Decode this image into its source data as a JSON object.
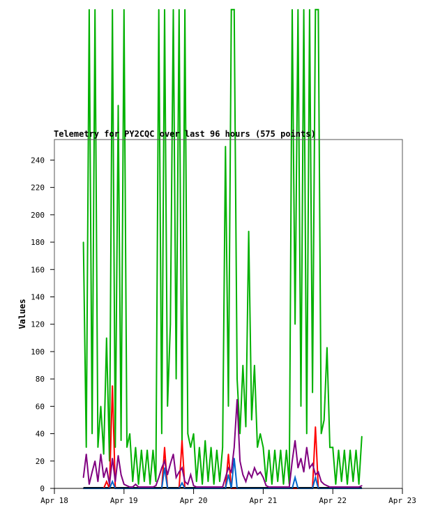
{
  "chart_data": {
    "type": "line",
    "title": "Telemetry for PY2CQC over last 96 hours (575 points)",
    "xlabel": "",
    "ylabel": "Values",
    "ylim": [
      0,
      255
    ],
    "xlim": [
      "Apr 18 00:00",
      "Apr 23 00:00"
    ],
    "yticks": [
      0,
      20,
      40,
      60,
      80,
      100,
      120,
      140,
      160,
      180,
      200,
      220,
      240
    ],
    "xticks": [
      "Apr 18",
      "Apr 19",
      "Apr 20",
      "Apr 21",
      "Apr 22",
      "Apr 23"
    ],
    "grid": false,
    "x": [
      "Apr 18 10:00",
      "Apr 18 11:00",
      "Apr 18 12:00",
      "Apr 18 13:00",
      "Apr 18 14:00",
      "Apr 18 15:00",
      "Apr 18 16:00",
      "Apr 18 17:00",
      "Apr 18 18:00",
      "Apr 18 19:00",
      "Apr 18 20:00",
      "Apr 18 21:00",
      "Apr 18 22:00",
      "Apr 18 23:00",
      "Apr 19 00:00",
      "Apr 19 01:00",
      "Apr 19 02:00",
      "Apr 19 03:00",
      "Apr 19 04:00",
      "Apr 19 05:00",
      "Apr 19 06:00",
      "Apr 19 07:00",
      "Apr 19 08:00",
      "Apr 19 09:00",
      "Apr 19 10:00",
      "Apr 19 11:00",
      "Apr 19 12:00",
      "Apr 19 13:00",
      "Apr 19 14:00",
      "Apr 19 15:00",
      "Apr 19 16:00",
      "Apr 19 17:00",
      "Apr 19 18:00",
      "Apr 19 19:00",
      "Apr 19 20:00",
      "Apr 19 21:00",
      "Apr 19 22:00",
      "Apr 19 23:00",
      "Apr 20 00:00",
      "Apr 20 01:00",
      "Apr 20 02:00",
      "Apr 20 03:00",
      "Apr 20 04:00",
      "Apr 20 05:00",
      "Apr 20 06:00",
      "Apr 20 07:00",
      "Apr 20 08:00",
      "Apr 20 09:00",
      "Apr 20 10:00",
      "Apr 20 11:00",
      "Apr 20 12:00",
      "Apr 20 13:00",
      "Apr 20 14:00",
      "Apr 20 15:00",
      "Apr 20 16:00",
      "Apr 20 17:00",
      "Apr 20 18:00",
      "Apr 20 19:00",
      "Apr 20 20:00",
      "Apr 20 21:00",
      "Apr 20 22:00",
      "Apr 20 23:00",
      "Apr 21 00:00",
      "Apr 21 01:00",
      "Apr 21 02:00",
      "Apr 21 03:00",
      "Apr 21 04:00",
      "Apr 21 05:00",
      "Apr 21 06:00",
      "Apr 21 07:00",
      "Apr 21 08:00",
      "Apr 21 09:00",
      "Apr 21 10:00",
      "Apr 21 11:00",
      "Apr 21 12:00",
      "Apr 21 13:00",
      "Apr 21 14:00",
      "Apr 21 15:00",
      "Apr 21 16:00",
      "Apr 21 17:00",
      "Apr 21 18:00",
      "Apr 21 19:00",
      "Apr 21 20:00",
      "Apr 21 21:00",
      "Apr 21 22:00",
      "Apr 21 23:00",
      "Apr 22 00:00",
      "Apr 22 01:00",
      "Apr 22 02:00",
      "Apr 22 03:00",
      "Apr 22 04:00",
      "Apr 22 05:00",
      "Apr 22 06:00",
      "Apr 22 07:00",
      "Apr 22 08:00",
      "Apr 22 09:00",
      "Apr 22 10:00"
    ],
    "series": [
      {
        "color": "#00b000",
        "values": [
          180,
          30,
          350,
          40,
          350,
          30,
          60,
          25,
          110,
          20,
          350,
          30,
          280,
          35,
          350,
          30,
          40,
          5,
          30,
          3,
          28,
          5,
          28,
          3,
          28,
          5,
          350,
          40,
          350,
          60,
          120,
          350,
          80,
          350,
          30,
          350,
          40,
          30,
          40,
          5,
          30,
          3,
          35,
          5,
          30,
          3,
          28,
          5,
          30,
          250,
          60,
          350,
          350,
          80,
          40,
          90,
          45,
          188,
          50,
          90,
          30,
          40,
          30,
          5,
          28,
          3,
          28,
          5,
          28,
          3,
          28,
          3,
          350,
          120,
          350,
          60,
          350,
          40,
          350,
          70,
          350,
          350,
          40,
          50,
          103,
          30,
          30,
          3,
          28,
          5,
          28,
          3,
          28,
          5,
          28,
          3,
          38
        ]
      },
      {
        "color": "#ff0000",
        "values": [
          0,
          0,
          0,
          0,
          0,
          0,
          0,
          0,
          5,
          0,
          75,
          0,
          0,
          0,
          0,
          0,
          0,
          0,
          0,
          0,
          0,
          0,
          0,
          0,
          0,
          0,
          0,
          0,
          30,
          0,
          0,
          0,
          0,
          0,
          35,
          0,
          0,
          0,
          0,
          0,
          0,
          0,
          0,
          0,
          0,
          0,
          0,
          0,
          0,
          0,
          25,
          0,
          0,
          0,
          0,
          0,
          0,
          0,
          0,
          0,
          0,
          0,
          0,
          0,
          0,
          0,
          0,
          0,
          0,
          0,
          0,
          0,
          0,
          0,
          0,
          0,
          0,
          0,
          0,
          0,
          45,
          0,
          0,
          0,
          0,
          0,
          0,
          0,
          0,
          0,
          0,
          0,
          0,
          0,
          0,
          0,
          0
        ]
      },
      {
        "color": "#0066cc",
        "values": [
          0,
          0,
          0,
          0,
          0,
          0,
          0,
          0,
          0,
          0,
          5,
          0,
          0,
          0,
          0,
          0,
          0,
          0,
          0,
          0,
          0,
          0,
          0,
          0,
          0,
          0,
          0,
          0,
          15,
          0,
          0,
          0,
          0,
          0,
          4,
          0,
          0,
          0,
          0,
          0,
          0,
          0,
          0,
          0,
          0,
          0,
          0,
          0,
          0,
          0,
          10,
          0,
          22,
          0,
          0,
          0,
          0,
          0,
          0,
          0,
          0,
          0,
          0,
          0,
          0,
          0,
          0,
          0,
          0,
          0,
          0,
          0,
          0,
          8,
          0,
          0,
          0,
          0,
          0,
          0,
          8,
          0,
          0,
          0,
          0,
          0,
          0,
          0,
          0,
          0,
          0,
          0,
          0,
          0,
          0,
          0,
          0
        ]
      },
      {
        "color": "#800080",
        "values": [
          8,
          25,
          3,
          12,
          20,
          5,
          25,
          8,
          15,
          3,
          22,
          5,
          24,
          10,
          3,
          2,
          1,
          1,
          3,
          1,
          1,
          1,
          1,
          1,
          1,
          2,
          8,
          15,
          20,
          10,
          18,
          25,
          8,
          12,
          15,
          5,
          3,
          10,
          2,
          1,
          1,
          1,
          1,
          1,
          1,
          1,
          1,
          1,
          1,
          8,
          15,
          12,
          30,
          65,
          20,
          10,
          5,
          12,
          8,
          15,
          10,
          12,
          8,
          2,
          1,
          1,
          1,
          1,
          1,
          1,
          1,
          1,
          20,
          35,
          15,
          22,
          12,
          30,
          15,
          18,
          10,
          12,
          5,
          3,
          2,
          1,
          1,
          1,
          1,
          1,
          1,
          1,
          1,
          1,
          1,
          1,
          2
        ]
      }
    ]
  }
}
